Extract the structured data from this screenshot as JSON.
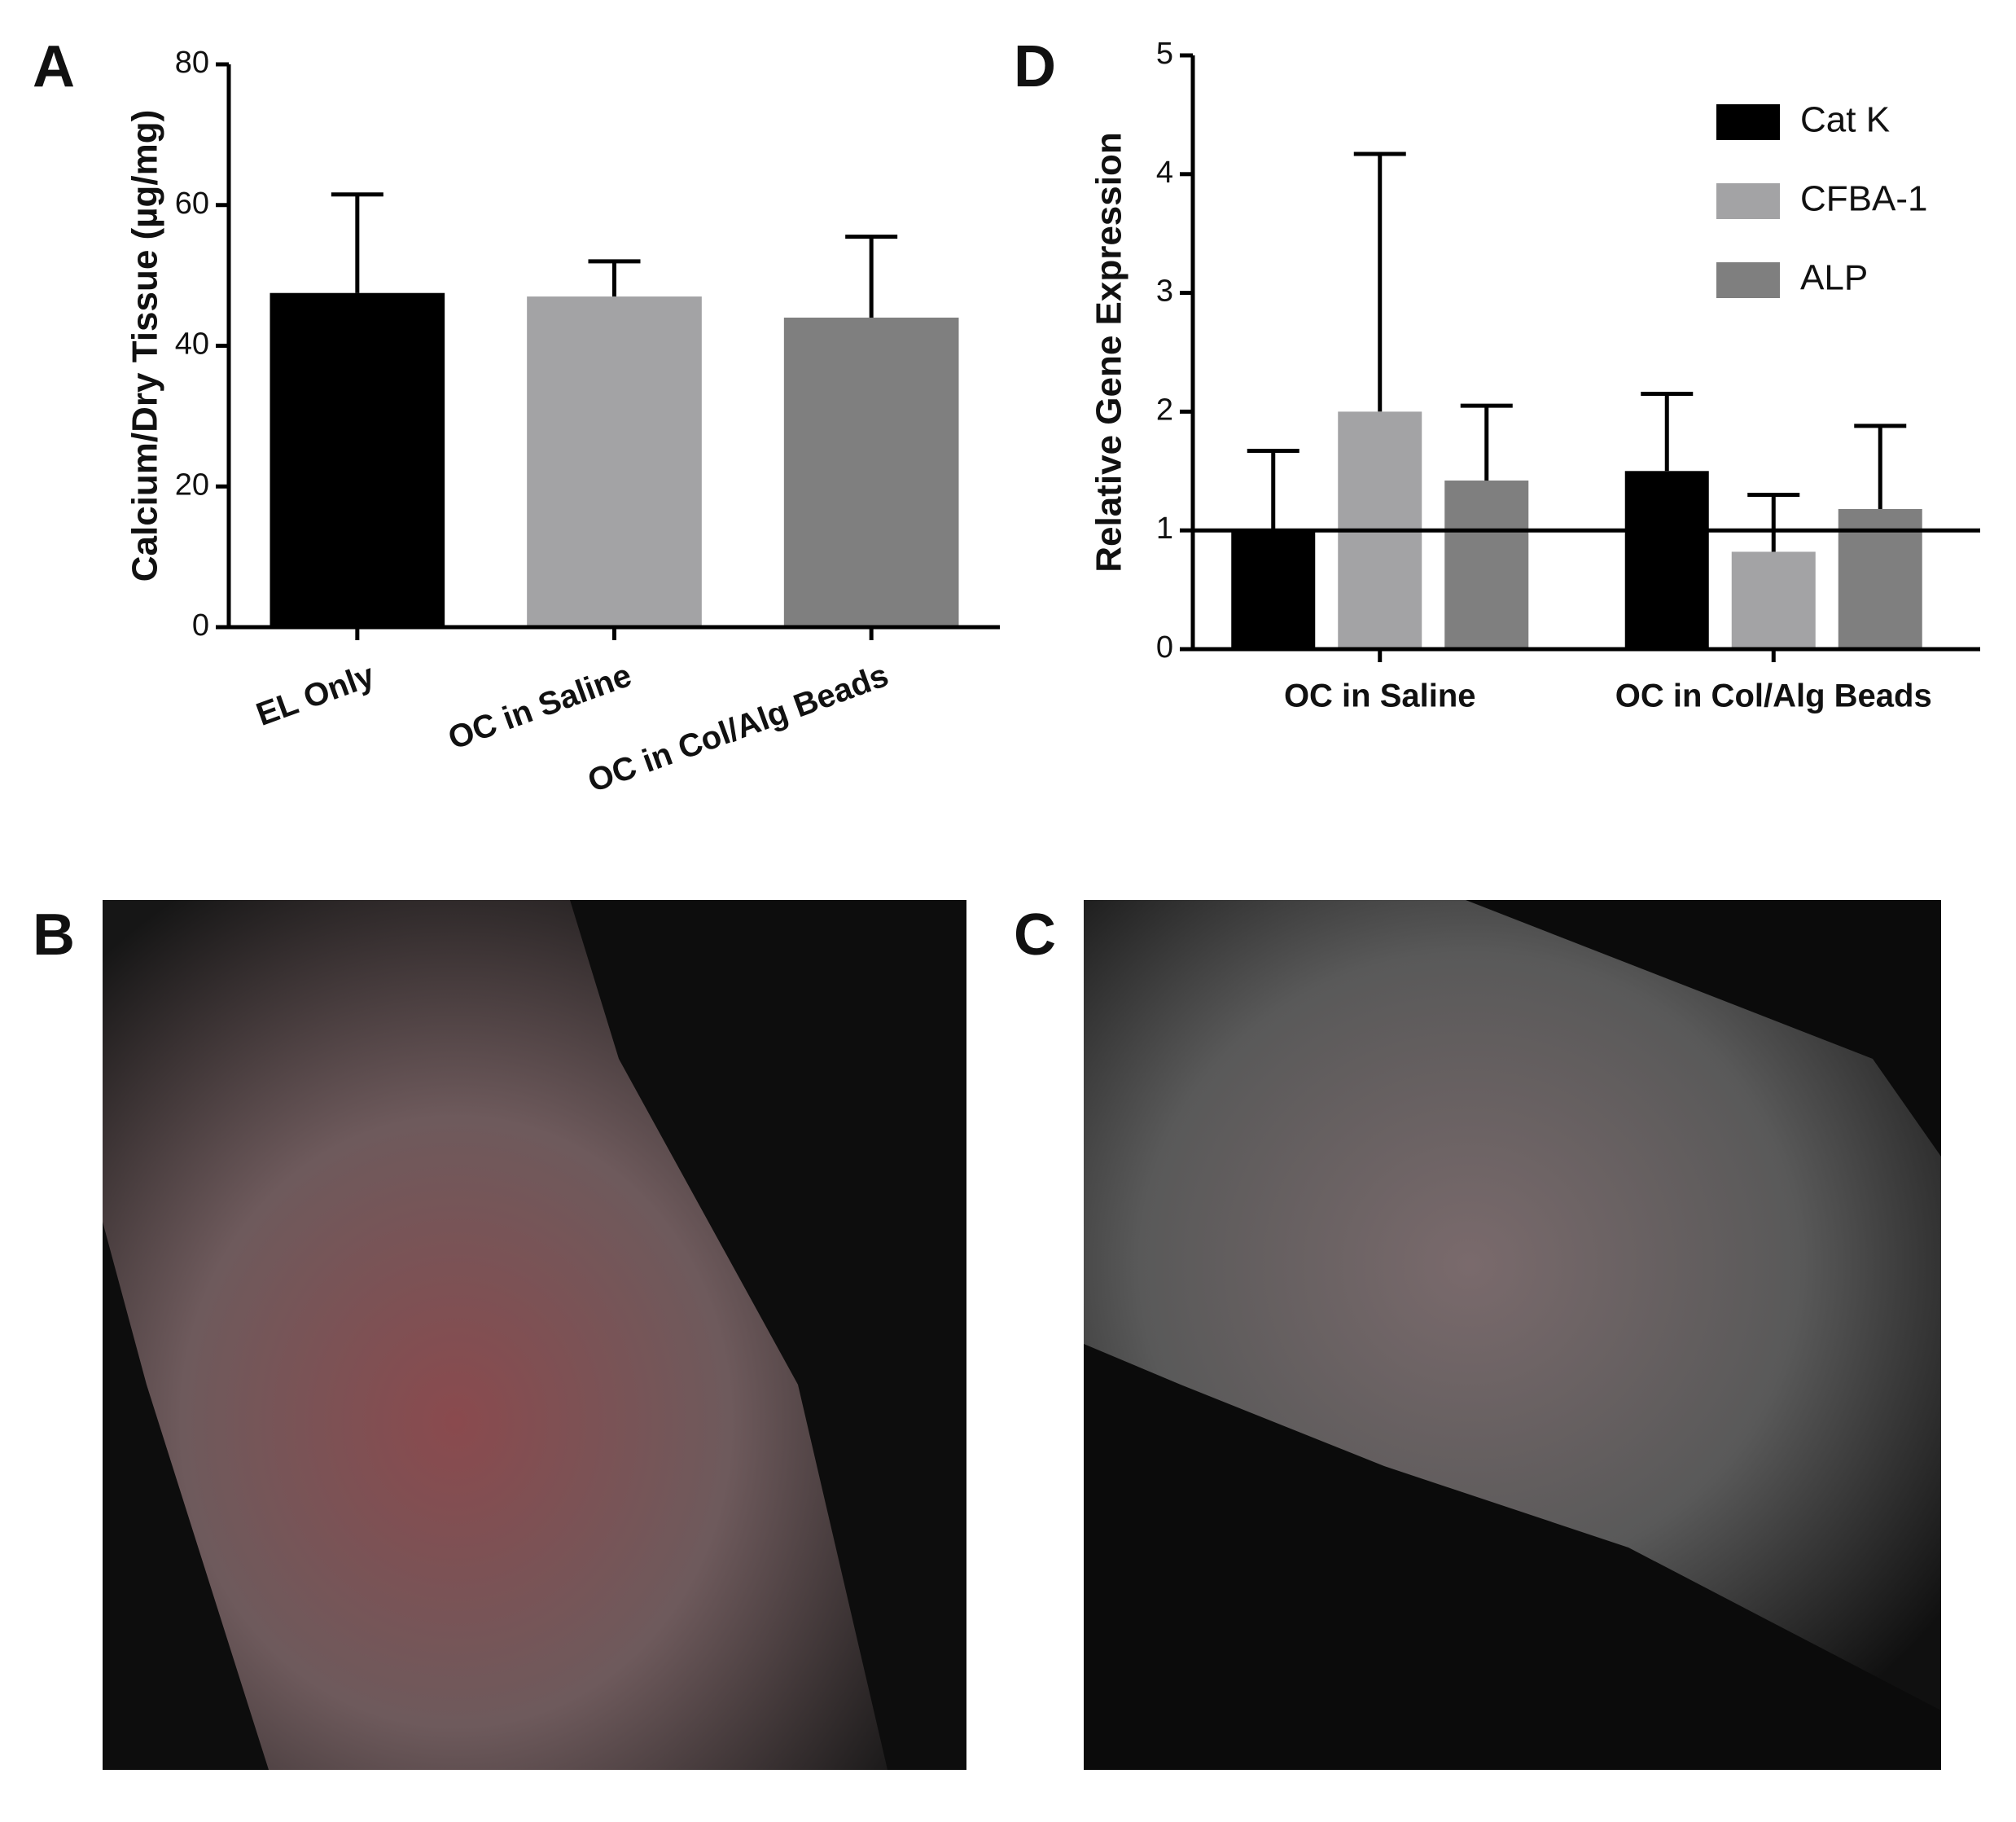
{
  "chart_data": [
    {
      "type": "bar",
      "panel": "A",
      "ylabel": "Calcium/Dry Tissue (µg/mg)",
      "categories": [
        "EL Only",
        "OC in Saline",
        "OC in Col/Alg Beads"
      ],
      "values": [
        47.5,
        47,
        44
      ],
      "errors": [
        14,
        5,
        11.5
      ],
      "colors": [
        "#000000",
        "#a3a3a5",
        "#7f7f7f"
      ],
      "ylim": [
        0,
        80
      ],
      "yticks": [
        0,
        20,
        40,
        60,
        80
      ]
    },
    {
      "type": "grouped_bar",
      "panel": "D",
      "ylabel": "Relative Gene Expression",
      "categories": [
        "OC in Saline",
        "OC in Col/Alg Beads"
      ],
      "series": [
        {
          "name": "Cat K",
          "color": "#000000",
          "values": [
            1.0,
            1.5
          ],
          "errors": [
            0.67,
            0.65
          ]
        },
        {
          "name": "CFBA-1",
          "color": "#a3a3a5",
          "values": [
            2.0,
            0.82
          ],
          "errors": [
            2.17,
            0.48
          ]
        },
        {
          "name": "ALP",
          "color": "#7f7f7f",
          "values": [
            1.42,
            1.18
          ],
          "errors": [
            0.63,
            0.7
          ]
        }
      ],
      "reference_line": 1,
      "ylim": [
        0,
        5
      ],
      "yticks": [
        0,
        1,
        2,
        3,
        4,
        5
      ]
    }
  ],
  "panels": {
    "B": "B",
    "C": "C"
  }
}
